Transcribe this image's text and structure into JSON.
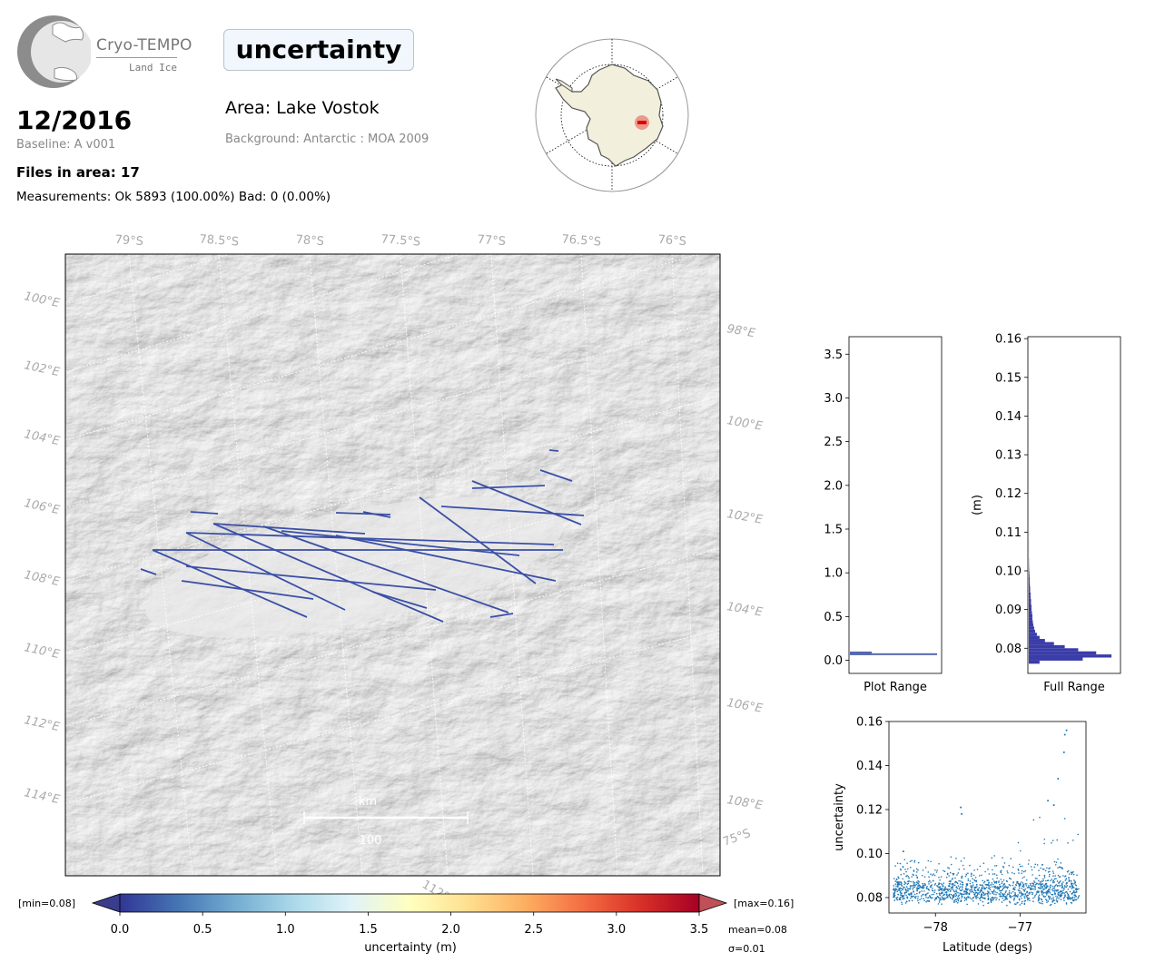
{
  "header": {
    "logo_name": "Cryo-TEMPO",
    "logo_subtitle": "Land Ice",
    "date": "12/2016",
    "baseline": "Baseline: A v001",
    "files_in_area": "Files in area: 17",
    "measurements": "Measurements: Ok 5893 (100.00%) Bad: 0 (0.00%)",
    "title": "uncertainty",
    "area": "Area: Lake Vostok",
    "background": "Background: Antarctic : MOA 2009"
  },
  "map": {
    "lat_labels": [
      "79°S",
      "78.5°S",
      "78°S",
      "77.5°S",
      "77°S",
      "76.5°S",
      "76°S"
    ],
    "lon_left_labels": [
      "100°E",
      "102°E",
      "104°E",
      "106°E",
      "108°E",
      "110°E",
      "112°E",
      "114°E"
    ],
    "lon_right_labels": [
      "98°E",
      "100°E",
      "102°E",
      "104°E",
      "106°E",
      "108°E"
    ],
    "corner_label": "75°S",
    "bottom_partial_label": "112°",
    "scalebar_unit": "km",
    "scalebar_value": "100",
    "track_color": "#3b4fa6"
  },
  "colorbar": {
    "min_label": "[min=0.08]",
    "max_label": "[max=0.16]",
    "ticks": [
      "0.0",
      "0.5",
      "1.0",
      "1.5",
      "2.0",
      "2.5",
      "3.0",
      "3.5"
    ],
    "label": "uncertainty (m)",
    "mean": "mean=0.08",
    "sigma": "σ=0.01",
    "colors": [
      "#313695",
      "#4575b4",
      "#74add1",
      "#abd9e9",
      "#e0f3f8",
      "#ffffbf",
      "#fee090",
      "#fdae61",
      "#f46d43",
      "#d73027",
      "#a50026"
    ]
  },
  "chart_data": [
    {
      "type": "bar",
      "orientation": "horizontal",
      "xlabel": "Plot Range",
      "ylabel": "",
      "ylim": [
        -0.15,
        3.7
      ],
      "yticks": [
        "0.0",
        "0.5",
        "1.0",
        "1.5",
        "2.0",
        "2.5",
        "3.0",
        "3.5"
      ],
      "bins": [
        {
          "y0": 0.06,
          "y1": 0.1,
          "value": 0.25
        },
        {
          "y0": 0.06,
          "y1": 0.08,
          "value": 1.0
        }
      ],
      "color": "#5567b0"
    },
    {
      "type": "bar",
      "orientation": "horizontal",
      "xlabel": "Full Range",
      "ylabel": "(m)",
      "ylim": [
        0.0735,
        0.1605
      ],
      "yticks": [
        "0.08",
        "0.09",
        "0.10",
        "0.11",
        "0.12",
        "0.13",
        "0.14",
        "0.15",
        "0.16"
      ],
      "bin_width": 0.0008,
      "bins_start": 0.076,
      "counts": [
        0.12,
        0.6,
        0.92,
        0.75,
        0.55,
        0.4,
        0.28,
        0.18,
        0.12,
        0.09,
        0.07,
        0.06,
        0.05,
        0.045,
        0.04,
        0.04,
        0.035,
        0.03,
        0.03,
        0.025,
        0.025,
        0.02,
        0.02,
        0.015,
        0.015,
        0.012,
        0.01,
        0.01,
        0.008,
        0.006,
        0.004,
        0.003,
        0.002,
        0.002,
        0.001,
        0.001,
        0.001,
        0.001,
        0.001,
        0.001,
        0.0,
        0.001,
        0.001,
        0.0,
        0.0,
        0.0,
        0.0,
        0.0,
        0.0,
        0.0,
        0.0,
        0.0,
        0.0,
        0.0,
        0.0,
        0.0,
        0.0,
        0.0,
        0.0,
        0.0,
        0.0,
        0.0,
        0.0,
        0.0,
        0.0,
        0.0,
        0.0,
        0.0,
        0.0,
        0.0,
        0.0,
        0.0,
        0.0,
        0.0,
        0.0,
        0.0,
        0.0,
        0.0,
        0.0,
        0.0,
        0.0,
        0.0,
        0.0,
        0.0,
        0.0,
        0.0,
        0.0,
        0.0,
        0.0,
        0.0,
        0.0,
        0.0,
        0.0,
        0.0,
        0.0,
        0.0,
        0.0,
        0.0,
        0.0,
        0.0
      ],
      "color": "#3a3ca8"
    },
    {
      "type": "scatter",
      "xlabel": "Latitude (degs)",
      "ylabel": "uncertainty",
      "xlim": [
        -78.55,
        -76.22
      ],
      "ylim": [
        0.073,
        0.16
      ],
      "xticks": [
        {
          "value": -78,
          "label": "−78"
        },
        {
          "value": -77,
          "label": "−77"
        }
      ],
      "yticks": [
        "0.08",
        "0.10",
        "0.12",
        "0.14",
        "0.16"
      ],
      "color": "#1f77b4",
      "highlights": [
        {
          "x": -76.45,
          "y": 0.156
        },
        {
          "x": -76.47,
          "y": 0.154
        },
        {
          "x": -76.48,
          "y": 0.146
        },
        {
          "x": -77.7,
          "y": 0.121
        },
        {
          "x": -77.69,
          "y": 0.118
        },
        {
          "x": -78.38,
          "y": 0.101
        },
        {
          "x": -76.67,
          "y": 0.124
        },
        {
          "x": -76.6,
          "y": 0.122
        },
        {
          "x": -76.55,
          "y": 0.134
        }
      ]
    }
  ]
}
